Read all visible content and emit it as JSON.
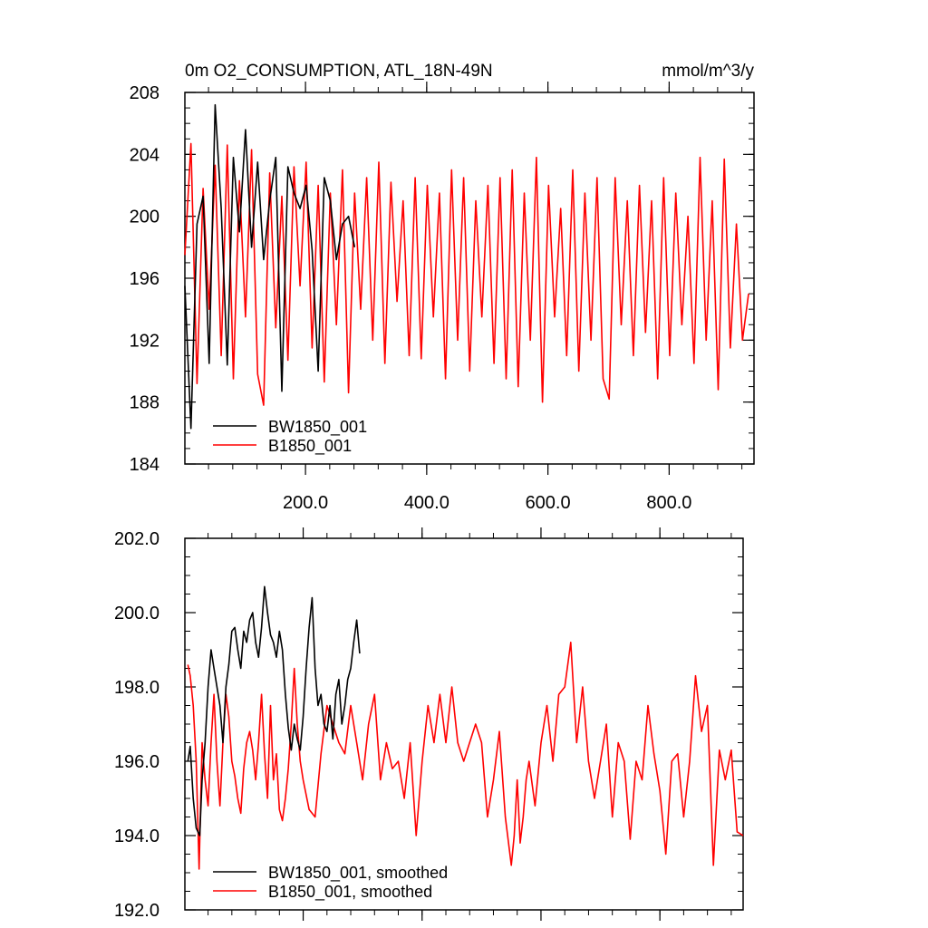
{
  "chart_data": [
    {
      "type": "line",
      "title": "0m O2_CONSUMPTION, ATL_18N-49N",
      "units": "mmol/m^3/y",
      "xlim": [
        1,
        940
      ],
      "ylim": [
        184,
        208
      ],
      "x_ticks": [
        200,
        400,
        600,
        800
      ],
      "x_tick_labels": [
        "200.0",
        "400.0",
        "600.0",
        "800.0"
      ],
      "y_ticks": [
        184,
        188,
        192,
        196,
        200,
        204,
        208
      ],
      "y_tick_labels": [
        "184",
        "188",
        "192",
        "196",
        "200",
        "204",
        "208"
      ],
      "grid": false,
      "legend": "bottom-left",
      "series": [
        {
          "name": "BW1850_001",
          "color": "#000000",
          "x_start": 1,
          "x_step": 10,
          "values": [
            195.5,
            186.3,
            199.5,
            201.3,
            190.5,
            207.2,
            200.5,
            190.4,
            203.8,
            199.0,
            205.6,
            198.0,
            203.5,
            197.2,
            201.0,
            203.8,
            188.7,
            203.2,
            201.5,
            200.5,
            202.0,
            197.8,
            190.0,
            202.5,
            201.0,
            197.2,
            199.5,
            200.0,
            198.0
          ]
        },
        {
          "name": "B1850_001",
          "color": "#ff0000",
          "x_start": 1,
          "x_step": 10,
          "values": [
            197.5,
            204.7,
            189.2,
            201.8,
            194.0,
            203.3,
            191.0,
            204.6,
            189.5,
            202.3,
            193.5,
            204.3,
            189.8,
            187.8,
            202.8,
            192.8,
            201.3,
            190.7,
            203.2,
            195.5,
            203.5,
            191.5,
            202.0,
            189.3,
            201.5,
            193.0,
            203.0,
            188.6,
            201.5,
            194.0,
            202.5,
            192.0,
            203.5,
            190.5,
            202.2,
            194.5,
            201.0,
            191.0,
            202.5,
            190.8,
            202.0,
            193.5,
            201.5,
            189.5,
            203.0,
            192.0,
            202.5,
            190.0,
            201.0,
            193.5,
            202.0,
            190.5,
            202.5,
            189.5,
            203.0,
            189.0,
            201.5,
            192.0,
            203.8,
            188.0,
            202.0,
            193.5,
            200.5,
            191.0,
            203.0,
            190.0,
            201.5,
            192.0,
            202.5,
            189.5,
            188.2,
            202.5,
            193.0,
            201.0,
            191.0,
            202.0,
            192.5,
            201.0,
            189.5,
            202.5,
            191.0,
            201.5,
            193.0,
            200.0,
            190.5,
            203.8,
            192.0,
            201.0,
            188.8,
            203.7,
            191.5,
            199.5,
            192.0,
            195.0
          ]
        }
      ],
      "annotations": [
        {
          "text": "BW1850_001",
          "color": "#000000"
        },
        {
          "text": "B1850_001",
          "color": "#ff0000"
        }
      ]
    },
    {
      "type": "line",
      "xlim": [
        1,
        940
      ],
      "ylim": [
        192,
        202
      ],
      "x_ticks": [
        200,
        400,
        600,
        800
      ],
      "y_ticks": [
        192,
        194,
        196,
        198,
        200,
        202
      ],
      "y_tick_labels": [
        "192.0",
        "194.0",
        "196.0",
        "198.0",
        "200.0",
        "202.0"
      ],
      "grid": false,
      "legend": "bottom-left",
      "series": [
        {
          "name": "BW1850_001, smoothed",
          "color": "#000000",
          "x": [
            6,
            10,
            15,
            20,
            26,
            30,
            35,
            40,
            45,
            50,
            55,
            60,
            65,
            70,
            75,
            80,
            85,
            90,
            95,
            100,
            105,
            110,
            115,
            120,
            125,
            130,
            135,
            140,
            145,
            150,
            155,
            160,
            165,
            170,
            175,
            180,
            185,
            190,
            195,
            200,
            205,
            210,
            215,
            220,
            225,
            230,
            235,
            240,
            245,
            250,
            255,
            260,
            265,
            270,
            275,
            280,
            285,
            290,
            295
          ],
          "values": [
            196.0,
            196.4,
            195.0,
            194.2,
            194.0,
            195.5,
            196.5,
            198.0,
            199.0,
            198.5,
            198.0,
            197.5,
            196.5,
            198.0,
            198.6,
            199.5,
            199.6,
            199.0,
            198.5,
            199.5,
            199.2,
            199.8,
            200.0,
            199.2,
            198.8,
            199.6,
            200.7,
            200.0,
            199.4,
            199.2,
            198.8,
            199.5,
            199.0,
            197.8,
            196.9,
            196.3,
            197.0,
            196.6,
            196.3,
            197.2,
            198.5,
            199.6,
            200.4,
            198.5,
            197.5,
            197.8,
            197.0,
            196.8,
            197.5,
            196.6,
            197.8,
            198.2,
            197.0,
            197.5,
            198.2,
            198.5,
            199.2,
            199.8,
            198.9
          ]
        },
        {
          "name": "B1850_001, smoothed",
          "color": "#ff0000",
          "x": [
            6,
            10,
            15,
            20,
            25,
            30,
            35,
            40,
            45,
            50,
            55,
            60,
            65,
            70,
            75,
            80,
            85,
            90,
            95,
            100,
            105,
            110,
            115,
            120,
            125,
            130,
            135,
            140,
            145,
            150,
            155,
            160,
            165,
            170,
            175,
            180,
            185,
            190,
            195,
            200,
            210,
            220,
            230,
            240,
            250,
            260,
            270,
            280,
            290,
            300,
            310,
            320,
            330,
            340,
            350,
            360,
            370,
            380,
            390,
            400,
            410,
            420,
            430,
            440,
            450,
            460,
            470,
            480,
            490,
            500,
            510,
            520,
            530,
            540,
            550,
            555,
            560,
            565,
            570,
            575,
            580,
            590,
            600,
            610,
            620,
            630,
            640,
            650,
            660,
            670,
            680,
            690,
            700,
            710,
            720,
            730,
            740,
            750,
            760,
            770,
            780,
            790,
            800,
            810,
            820,
            830,
            840,
            850,
            860,
            870,
            880,
            890,
            900,
            910,
            920,
            930,
            940
          ],
          "values": [
            198.6,
            198.3,
            197.5,
            196.0,
            193.1,
            196.5,
            195.5,
            194.8,
            196.5,
            197.8,
            196.0,
            194.8,
            196.5,
            197.8,
            197.2,
            196.0,
            195.6,
            195.0,
            194.6,
            195.8,
            196.5,
            196.8,
            196.3,
            195.5,
            196.5,
            197.8,
            196.2,
            195.0,
            197.5,
            195.5,
            196.2,
            194.7,
            194.4,
            195.0,
            195.8,
            197.0,
            198.5,
            197.0,
            196.0,
            195.5,
            194.7,
            194.5,
            196.2,
            197.5,
            197.0,
            196.5,
            196.2,
            197.5,
            196.5,
            195.5,
            197.0,
            197.8,
            195.5,
            196.5,
            195.8,
            196.0,
            195.0,
            196.5,
            194.0,
            196.0,
            197.5,
            196.5,
            197.8,
            196.5,
            198.0,
            196.5,
            196.0,
            196.5,
            197.0,
            196.5,
            194.5,
            195.5,
            196.8,
            194.5,
            193.2,
            194.0,
            195.5,
            193.8,
            194.5,
            195.5,
            196.0,
            194.8,
            196.5,
            197.5,
            196.0,
            197.8,
            198.0,
            199.2,
            196.5,
            198.0,
            196.0,
            195.0,
            196.0,
            197.0,
            194.5,
            196.5,
            196.0,
            193.9,
            196.0,
            195.5,
            197.5,
            196.2,
            195.2,
            193.5,
            196.0,
            196.2,
            194.5,
            196.0,
            198.3,
            196.8,
            197.5,
            193.2,
            196.3,
            195.5,
            196.3,
            194.1,
            194.0
          ]
        }
      ],
      "annotations": [
        {
          "text": "BW1850_001, smoothed",
          "color": "#000000"
        },
        {
          "text": "B1850_001, smoothed",
          "color": "#ff0000"
        }
      ]
    }
  ]
}
